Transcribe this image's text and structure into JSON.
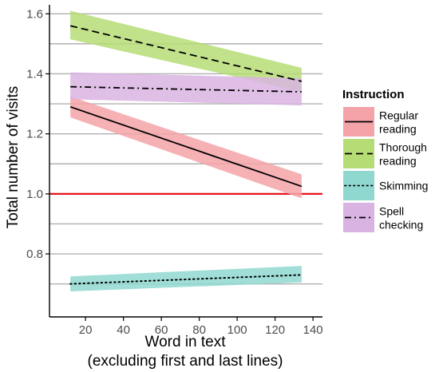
{
  "chart_data": {
    "type": "line",
    "title": "",
    "xlabel_lines": [
      "Word in text",
      "(excluding first and last lines)"
    ],
    "ylabel": "Total number of visits",
    "xlim": [
      1,
      145
    ],
    "ylim": [
      0.59,
      1.63
    ],
    "x_ticks": [
      20,
      40,
      60,
      80,
      100,
      120,
      140
    ],
    "y_ticks": [
      0.8,
      1.0,
      1.2,
      1.4,
      1.6
    ],
    "y_tick_labels": [
      "0.8",
      "1.0",
      "1.2",
      "1.4",
      "1.6"
    ],
    "grid": "horizontal",
    "reference_line": {
      "y": 1.0,
      "color": "#e8141c"
    },
    "legend": {
      "title": "Instruction",
      "position": "right"
    },
    "series": [
      {
        "name": "Regular reading",
        "label_lines": [
          "Regular",
          "reading"
        ],
        "color": "#f4a3a8",
        "dash": "solid",
        "x": [
          12,
          134
        ],
        "y": [
          1.29,
          1.025
        ],
        "lower": [
          1.255,
          0.985
        ],
        "upper": [
          1.325,
          1.065
        ]
      },
      {
        "name": "Thorough reading",
        "label_lines": [
          "Thorough",
          "reading"
        ],
        "color": "#b6dc76",
        "dash": "dashed",
        "x": [
          12,
          134
        ],
        "y": [
          1.56,
          1.375
        ],
        "lower": [
          1.515,
          1.34
        ],
        "upper": [
          1.61,
          1.42
        ]
      },
      {
        "name": "Skimming",
        "label_lines": [
          "Skimming"
        ],
        "color": "#8fd8d0",
        "dash": "dotted",
        "x": [
          12,
          134
        ],
        "y": [
          0.7,
          0.73
        ],
        "lower": [
          0.675,
          0.705
        ],
        "upper": [
          0.725,
          0.76
        ]
      },
      {
        "name": "Spell checking",
        "label_lines": [
          "Spell",
          "checking"
        ],
        "color": "#d9b4e2",
        "dash": "dashdot",
        "x": [
          12,
          134
        ],
        "y": [
          1.357,
          1.34
        ],
        "lower": [
          1.315,
          1.295
        ],
        "upper": [
          1.405,
          1.385
        ]
      }
    ]
  }
}
